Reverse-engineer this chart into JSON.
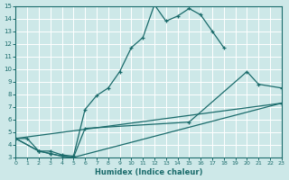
{
  "bg_color": "#cde8e8",
  "line_color": "#1a6b6b",
  "grid_color": "#ffffff",
  "xlabel": "Humidex (Indice chaleur)",
  "xlim": [
    0,
    23
  ],
  "ylim": [
    3,
    15
  ],
  "xticks": [
    0,
    1,
    2,
    3,
    4,
    5,
    6,
    7,
    8,
    9,
    10,
    11,
    12,
    13,
    14,
    15,
    16,
    17,
    18,
    19,
    20,
    21,
    22,
    23
  ],
  "yticks": [
    3,
    4,
    5,
    6,
    7,
    8,
    9,
    10,
    11,
    12,
    13,
    14,
    15
  ],
  "line1_x": [
    0,
    1,
    2,
    3,
    4,
    5,
    6,
    7,
    8,
    9,
    10,
    11,
    12,
    13,
    14,
    15,
    16,
    17,
    18
  ],
  "line1_y": [
    4.5,
    4.5,
    3.5,
    3.5,
    3.2,
    3.1,
    6.8,
    7.9,
    8.5,
    9.8,
    11.7,
    12.5,
    15.1,
    13.8,
    14.2,
    14.8,
    14.3,
    13.0,
    11.7
  ],
  "line2_x": [
    0,
    2,
    3,
    4,
    5,
    6,
    15,
    20,
    21,
    23
  ],
  "line2_y": [
    4.5,
    3.5,
    3.3,
    3.1,
    3.0,
    5.3,
    5.8,
    9.8,
    8.8,
    8.5
  ],
  "line3_x": [
    0,
    2,
    3,
    4,
    5,
    23
  ],
  "line3_y": [
    4.5,
    3.5,
    3.3,
    3.1,
    3.0,
    7.3
  ],
  "line4_x": [
    0,
    23
  ],
  "line4_y": [
    4.5,
    7.3
  ]
}
